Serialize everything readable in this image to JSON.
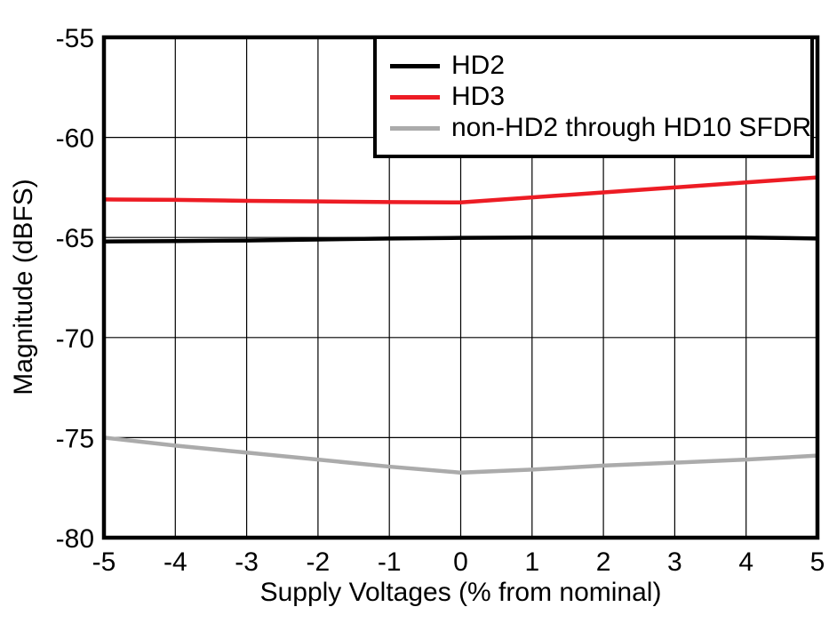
{
  "chart_data": {
    "type": "line",
    "title": "",
    "xlabel": "Supply Voltages (% from nominal)",
    "ylabel": "Magnitude (dBFS)",
    "xlim": [
      -5,
      5
    ],
    "ylim": [
      -80,
      -55
    ],
    "xticks": [
      -5,
      -4,
      -3,
      -2,
      -1,
      0,
      1,
      2,
      3,
      4,
      5
    ],
    "yticks": [
      -55,
      -60,
      -65,
      -70,
      -75,
      -80
    ],
    "grid": true,
    "legend_position": "top-right",
    "background_color": "#ffffff",
    "axis_color": "#000000",
    "x": [
      -5,
      -4,
      -3,
      -2,
      -1,
      0,
      1,
      2,
      3,
      4,
      5
    ],
    "series": [
      {
        "name": "HD2",
        "color": "#000000",
        "values": [
          -65.2,
          -65.18,
          -65.15,
          -65.1,
          -65.05,
          -65.02,
          -65.0,
          -65.0,
          -65.0,
          -65.0,
          -65.05
        ]
      },
      {
        "name": "HD3",
        "color": "#ED1C24",
        "values": [
          -63.1,
          -63.12,
          -63.17,
          -63.2,
          -63.23,
          -63.25,
          -63.0,
          -62.75,
          -62.5,
          -62.25,
          -62.0
        ]
      },
      {
        "name": "non-HD2 through HD10 SFDR",
        "color": "#ABABAB",
        "values": [
          -75.0,
          -75.4,
          -75.75,
          -76.1,
          -76.45,
          -76.75,
          -76.6,
          -76.4,
          -76.25,
          -76.1,
          -75.9
        ]
      }
    ]
  }
}
